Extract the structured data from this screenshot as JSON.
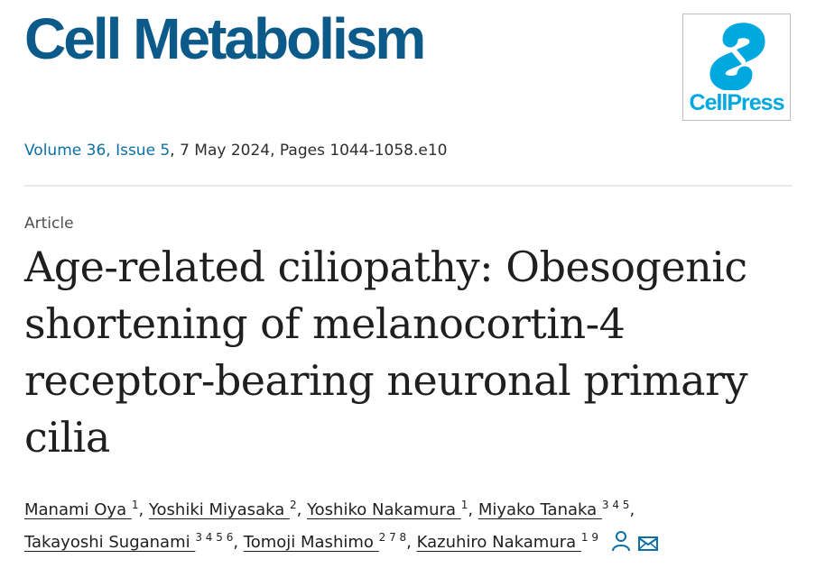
{
  "journal": {
    "title": "Cell Metabolism"
  },
  "publisher": {
    "logo_text": "CellPress"
  },
  "citation": {
    "volume_issue": "Volume 36, Issue 5",
    "rest": ", 7 May 2024, Pages 1044-1058.e10"
  },
  "article": {
    "type": "Article",
    "title": "Age-related ciliopathy: Obesogenic shortening of melanocortin-4 receptor-bearing neuronal primary cilia"
  },
  "authors": [
    {
      "name": "Manami Oya",
      "affiliations": "1",
      "sep": ", "
    },
    {
      "name": "Yoshiki Miyasaka",
      "affiliations": "2",
      "sep": ", "
    },
    {
      "name": "Yoshiko Nakamura",
      "affiliations": "1",
      "sep": ", "
    },
    {
      "name": "Miyako Tanaka",
      "affiliations": "3 4 5",
      "sep": ","
    },
    {
      "name": "Takayoshi Suganami",
      "affiliations": "3 4 5 6",
      "sep": ", "
    },
    {
      "name": "Tomoji Mashimo",
      "affiliations": "2 7 8",
      "sep": ", "
    },
    {
      "name": "Kazuhiro Nakamura",
      "affiliations": "1 9",
      "sep": ""
    }
  ],
  "icons": {
    "corresponding": "person-icon",
    "email": "envelope-icon"
  },
  "colors": {
    "journal_blue": "#0c5a8a",
    "link_blue": "#0c6fa3",
    "cellpress_cyan": "#00a8e0"
  }
}
